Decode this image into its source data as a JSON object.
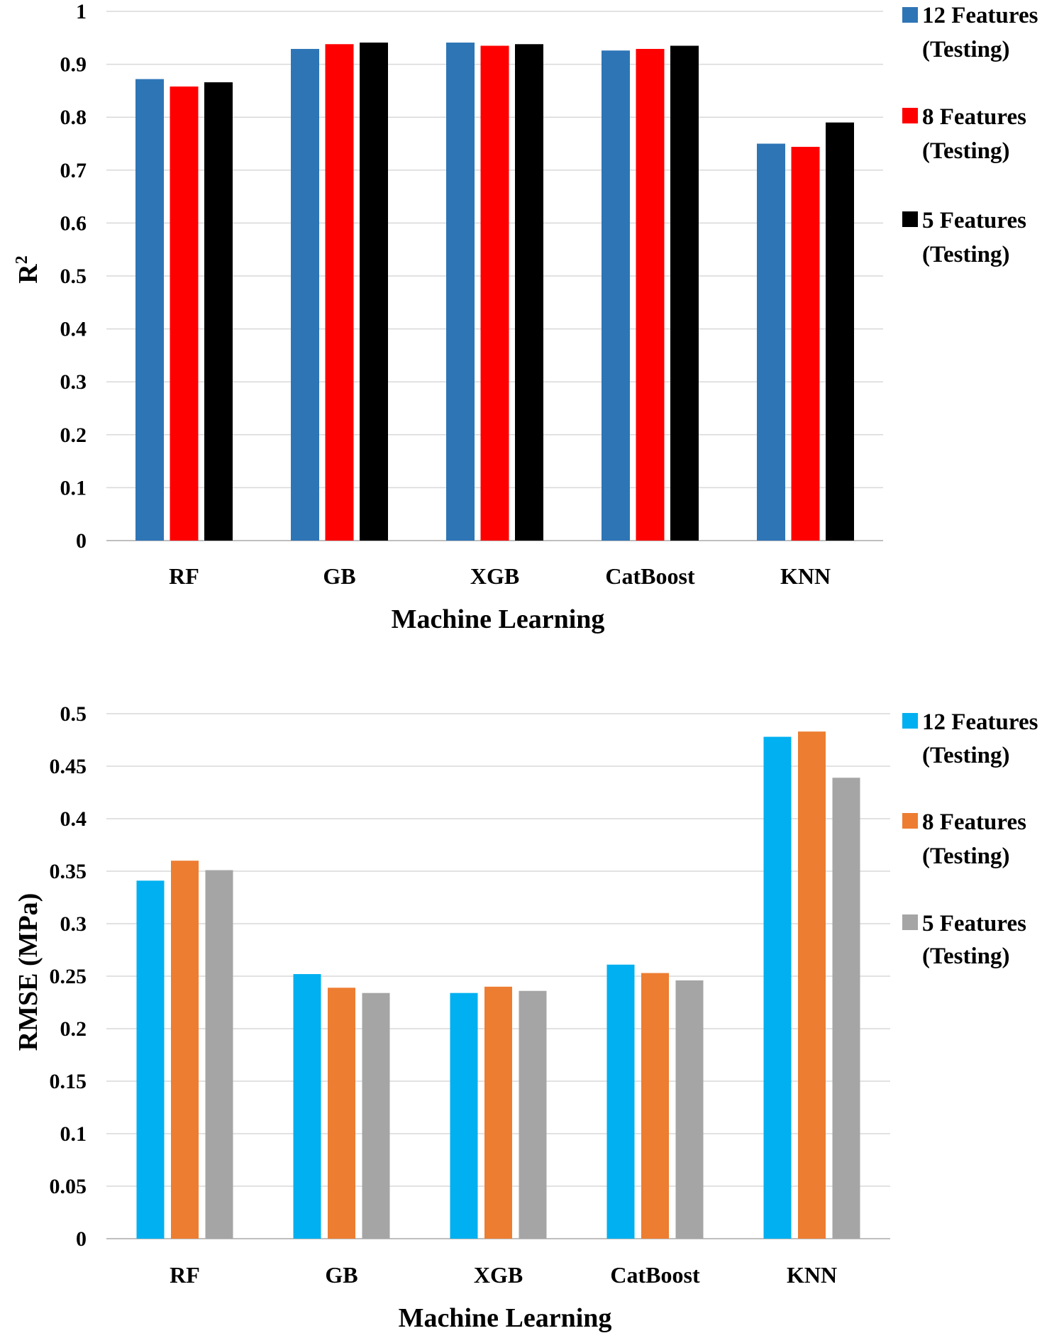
{
  "chart_data": [
    {
      "type": "bar",
      "categories": [
        "RF",
        "GB",
        "XGB",
        "CatBoost",
        "KNN"
      ],
      "series": [
        {
          "name": "12 Features (Testing)",
          "line1": "12 Features",
          "line2": "(Testing)",
          "color": "#2E75B6",
          "values": [
            0.872,
            0.929,
            0.941,
            0.926,
            0.75
          ]
        },
        {
          "name": "8 Features (Testing)",
          "line1": "8 Features",
          "line2": "(Testing)",
          "color": "#FF0000",
          "values": [
            0.858,
            0.938,
            0.935,
            0.929,
            0.744
          ]
        },
        {
          "name": "5 Features (Testing)",
          "line1": "5 Features",
          "line2": "(Testing)",
          "color": "#000000",
          "values": [
            0.866,
            0.941,
            0.938,
            0.935,
            0.79
          ]
        }
      ],
      "xlabel": "Machine Learning",
      "ylabel": "R",
      "ylabel_superscript": "2",
      "ylim": [
        0,
        1
      ],
      "yticks": [
        "0",
        "0.1",
        "0.2",
        "0.3",
        "0.4",
        "0.5",
        "0.6",
        "0.7",
        "0.8",
        "0.9",
        "1"
      ],
      "grid": true,
      "legend_position": "right"
    },
    {
      "type": "bar",
      "categories": [
        "RF",
        "GB",
        "XGB",
        "CatBoost",
        "KNN"
      ],
      "series": [
        {
          "name": "12 Features (Testing)",
          "line1": "12 Features",
          "line2": "(Testing)",
          "color": "#00B0F0",
          "values": [
            0.341,
            0.252,
            0.234,
            0.261,
            0.478
          ]
        },
        {
          "name": "8 Features (Testing)",
          "line1": "8 Features",
          "line2": "(Testing)",
          "color": "#ED7D31",
          "values": [
            0.36,
            0.239,
            0.24,
            0.253,
            0.483
          ]
        },
        {
          "name": "5 Features (Testing)",
          "line1": "5 Features",
          "line2": "(Testing)",
          "color": "#A5A5A5",
          "values": [
            0.351,
            0.234,
            0.236,
            0.246,
            0.439
          ]
        }
      ],
      "xlabel": "Machine Learning",
      "ylabel": "RMSE (MPa)",
      "ylim": [
        0,
        0.5
      ],
      "yticks": [
        "0",
        "0.05",
        "0.1",
        "0.15",
        "0.2",
        "0.25",
        "0.3",
        "0.35",
        "0.4",
        "0.45",
        "0.5"
      ],
      "grid": true,
      "legend_position": "right"
    }
  ]
}
